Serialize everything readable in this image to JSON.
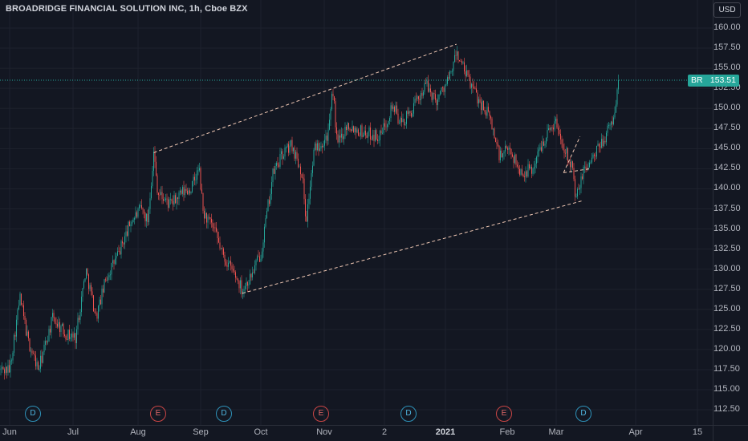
{
  "header": {
    "title": "BROADRIDGE FINANCIAL SOLUTION INC, 1h, Cboe BZX",
    "currency_button": "USD"
  },
  "last_price": {
    "symbol": "BR",
    "value": "153.51"
  },
  "colors": {
    "up": "#26a69a",
    "down": "#ef5350",
    "background": "#131722",
    "last_price": "#26a69a"
  },
  "events": [
    {
      "type": "D",
      "label": "D"
    },
    {
      "type": "E",
      "label": "E"
    },
    {
      "type": "D",
      "label": "D"
    },
    {
      "type": "E",
      "label": "E"
    },
    {
      "type": "D",
      "label": "D"
    },
    {
      "type": "E",
      "label": "E"
    },
    {
      "type": "D",
      "label": "D"
    }
  ],
  "chart_data": {
    "type": "candlestick",
    "y_ticks": [
      "160.00",
      "157.50",
      "155.00",
      "152.50",
      "150.00",
      "147.50",
      "145.00",
      "142.50",
      "140.00",
      "137.50",
      "135.00",
      "132.50",
      "130.00",
      "127.50",
      "125.00",
      "122.50",
      "120.00",
      "117.50",
      "115.00",
      "112.50"
    ],
    "x_ticks": [
      {
        "label": "Jun",
        "bold": false
      },
      {
        "label": "Jul",
        "bold": false
      },
      {
        "label": "Aug",
        "bold": false
      },
      {
        "label": "Sep",
        "bold": false
      },
      {
        "label": "Oct",
        "bold": false
      },
      {
        "label": "Nov",
        "bold": false
      },
      {
        "label": "2",
        "bold": false
      },
      {
        "label": "2021",
        "bold": true
      },
      {
        "label": "Feb",
        "bold": false
      },
      {
        "label": "Mar",
        "bold": false
      },
      {
        "label": "Apr",
        "bold": false
      },
      {
        "label": "15",
        "bold": false
      }
    ],
    "ylim": [
      112.5,
      160
    ],
    "last_value": 153.51,
    "price_path": [
      [
        "2020-06-01",
        117.5
      ],
      [
        "2020-06-06",
        126.5
      ],
      [
        "2020-06-10",
        121.0
      ],
      [
        "2020-06-15",
        117.5
      ],
      [
        "2020-06-22",
        124.0
      ],
      [
        "2020-06-28",
        122.0
      ],
      [
        "2020-07-03",
        121.5
      ],
      [
        "2020-07-08",
        130.0
      ],
      [
        "2020-07-13",
        124.0
      ],
      [
        "2020-07-18",
        129.0
      ],
      [
        "2020-07-24",
        132.0
      ],
      [
        "2020-07-30",
        136.0
      ],
      [
        "2020-08-04",
        137.5
      ],
      [
        "2020-08-07",
        136.0
      ],
      [
        "2020-08-10",
        144.5
      ],
      [
        "2020-08-12",
        139.5
      ],
      [
        "2020-08-18",
        138.0
      ],
      [
        "2020-08-24",
        139.5
      ],
      [
        "2020-08-28",
        140.0
      ],
      [
        "2020-09-01",
        142.5
      ],
      [
        "2020-09-03",
        137.0
      ],
      [
        "2020-09-08",
        135.0
      ],
      [
        "2020-09-13",
        131.5
      ],
      [
        "2020-09-18",
        129.5
      ],
      [
        "2020-09-22",
        127.5
      ],
      [
        "2020-09-26",
        129.0
      ],
      [
        "2020-10-01",
        132.0
      ],
      [
        "2020-10-07",
        142.0
      ],
      [
        "2020-10-12",
        144.5
      ],
      [
        "2020-10-16",
        145.5
      ],
      [
        "2020-10-21",
        142.0
      ],
      [
        "2020-10-23",
        136.0
      ],
      [
        "2020-10-27",
        145.0
      ],
      [
        "2020-10-31",
        146.0
      ],
      [
        "2020-11-03",
        147.0
      ],
      [
        "2020-11-05",
        152.5
      ],
      [
        "2020-11-07",
        145.5
      ],
      [
        "2020-11-12",
        148.0
      ],
      [
        "2020-11-20",
        147.0
      ],
      [
        "2020-11-28",
        146.5
      ],
      [
        "2020-12-04",
        150.5
      ],
      [
        "2020-12-08",
        148.0
      ],
      [
        "2020-12-14",
        150.0
      ],
      [
        "2020-12-20",
        153.0
      ],
      [
        "2020-12-25",
        151.0
      ],
      [
        "2021-01-01",
        154.0
      ],
      [
        "2021-01-04",
        157.0
      ],
      [
        "2021-01-08",
        154.5
      ],
      [
        "2021-01-15",
        151.0
      ],
      [
        "2021-01-20",
        149.0
      ],
      [
        "2021-01-25",
        144.0
      ],
      [
        "2021-01-30",
        145.0
      ],
      [
        "2021-02-04",
        142.0
      ],
      [
        "2021-02-10",
        142.5
      ],
      [
        "2021-02-15",
        146.0
      ],
      [
        "2021-02-21",
        148.5
      ],
      [
        "2021-02-24",
        146.0
      ],
      [
        "2021-03-01",
        143.0
      ],
      [
        "2021-03-03",
        138.5
      ],
      [
        "2021-03-07",
        142.5
      ],
      [
        "2021-03-12",
        144.0
      ],
      [
        "2021-03-18",
        147.0
      ],
      [
        "2021-03-21",
        148.5
      ],
      [
        "2021-03-24",
        153.5
      ]
    ],
    "trendlines": [
      {
        "from": [
          "2020-08-10",
          144.5
        ],
        "to": [
          "2021-01-04",
          158.0
        ]
      },
      {
        "from": [
          "2020-09-22",
          127.0
        ],
        "to": [
          "2021-03-06",
          138.5
        ]
      },
      {
        "from": [
          "2021-02-25",
          142.0
        ],
        "to": [
          "2021-03-05",
          146.5
        ]
      },
      {
        "from": [
          "2021-02-25",
          142.0
        ],
        "to": [
          "2021-03-10",
          142.5
        ]
      }
    ]
  }
}
